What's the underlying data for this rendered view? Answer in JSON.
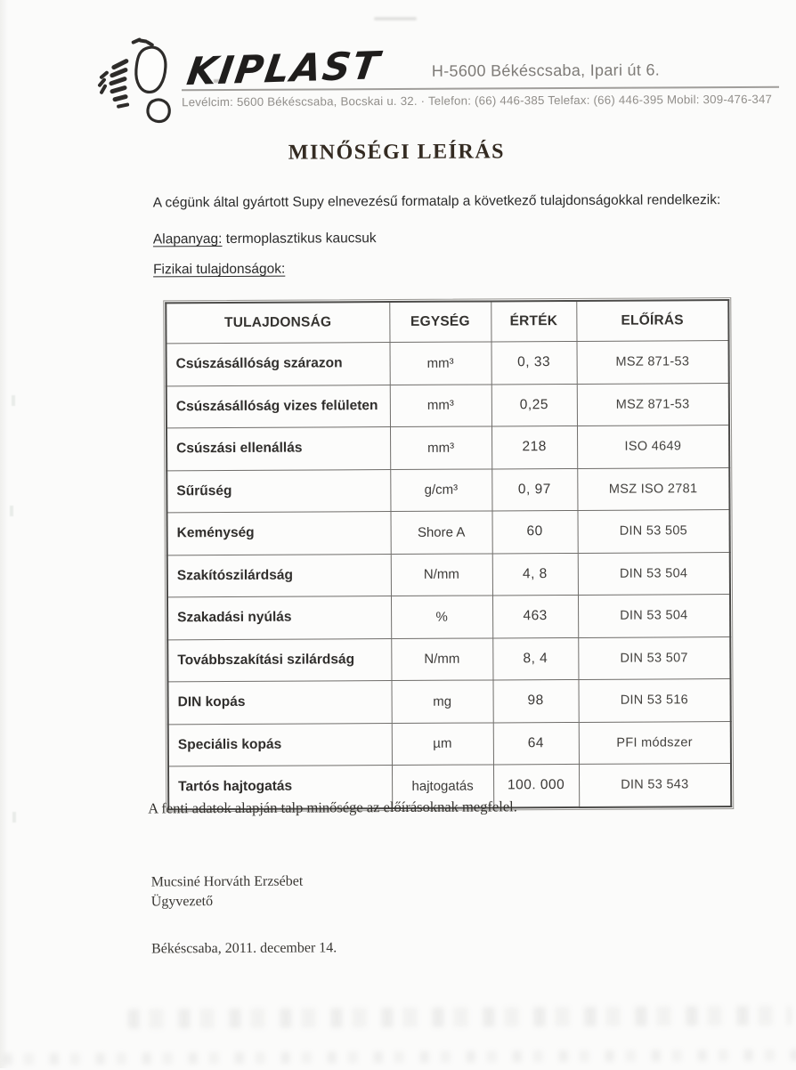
{
  "header": {
    "logo_text": "KIPLAST",
    "logo_icon": "footprint-logo-icon",
    "address": "H-5600 Békéscsaba, Ipari út 6.",
    "contact_line": "Levélcim: 5600 Békéscsaba, Bocskai u. 32. · Telefon: (66) 446-385 Telefax: (66) 446-395 Mobil: 309-476-347"
  },
  "title": "MINŐSÉGI LEÍRÁS",
  "intro": "A cégünk által gyártott Supy elnevezésű formatalp a következő tulajdonságokkal rendelkezik:",
  "material": {
    "label": "Alapanyag:",
    "value": " termoplasztikus kaucsuk"
  },
  "physical_heading": "Fizikai tulajdonságok:",
  "table": {
    "headers": [
      "TULAJDONSÁG",
      "EGYSÉG",
      "ÉRTÉK",
      "ELŐÍRÁS"
    ],
    "rows": [
      {
        "property": "Csúszásállóság szárazon",
        "unit": "mm³",
        "value": "0, 33",
        "standard": "MSZ 871-53"
      },
      {
        "property": "Csúszásállóság vizes felületen",
        "unit": "mm³",
        "value": "0,25",
        "standard": "MSZ 871-53"
      },
      {
        "property": "Csúszási ellenállás",
        "unit": "mm³",
        "value": "218",
        "standard": "ISO 4649"
      },
      {
        "property": "Sűrűség",
        "unit": "g/cm³",
        "value": "0, 97",
        "standard": "MSZ ISO 2781"
      },
      {
        "property": "Keménység",
        "unit": "Shore A",
        "value": "60",
        "standard": "DIN 53 505"
      },
      {
        "property": "Szakítószilárdság",
        "unit": "N/mm",
        "value": "4, 8",
        "standard": "DIN 53 504"
      },
      {
        "property": "Szakadási nyúlás",
        "unit": "%",
        "value": "463",
        "standard": "DIN 53 504"
      },
      {
        "property": "Továbbszakítási szilárdság",
        "unit": "N/mm",
        "value": "8, 4",
        "standard": "DIN 53 507"
      },
      {
        "property": "DIN kopás",
        "unit": "mg",
        "value": "98",
        "standard": "DIN 53 516"
      },
      {
        "property": "Speciális kopás",
        "unit": "µm",
        "value": "64",
        "standard": "PFI módszer"
      },
      {
        "property": "Tartós hajtogatás",
        "unit": "hajtogatás",
        "value": "100. 000",
        "standard": "DIN 53 543"
      }
    ]
  },
  "conclusion": "A fenti adatok alapján talp minősége az előírásoknak megfelel.",
  "signature": {
    "name": "Mucsiné Horváth Erzsébet",
    "role": "Ügyvezető"
  },
  "date_line": "Békéscsaba, 2011. december 14."
}
